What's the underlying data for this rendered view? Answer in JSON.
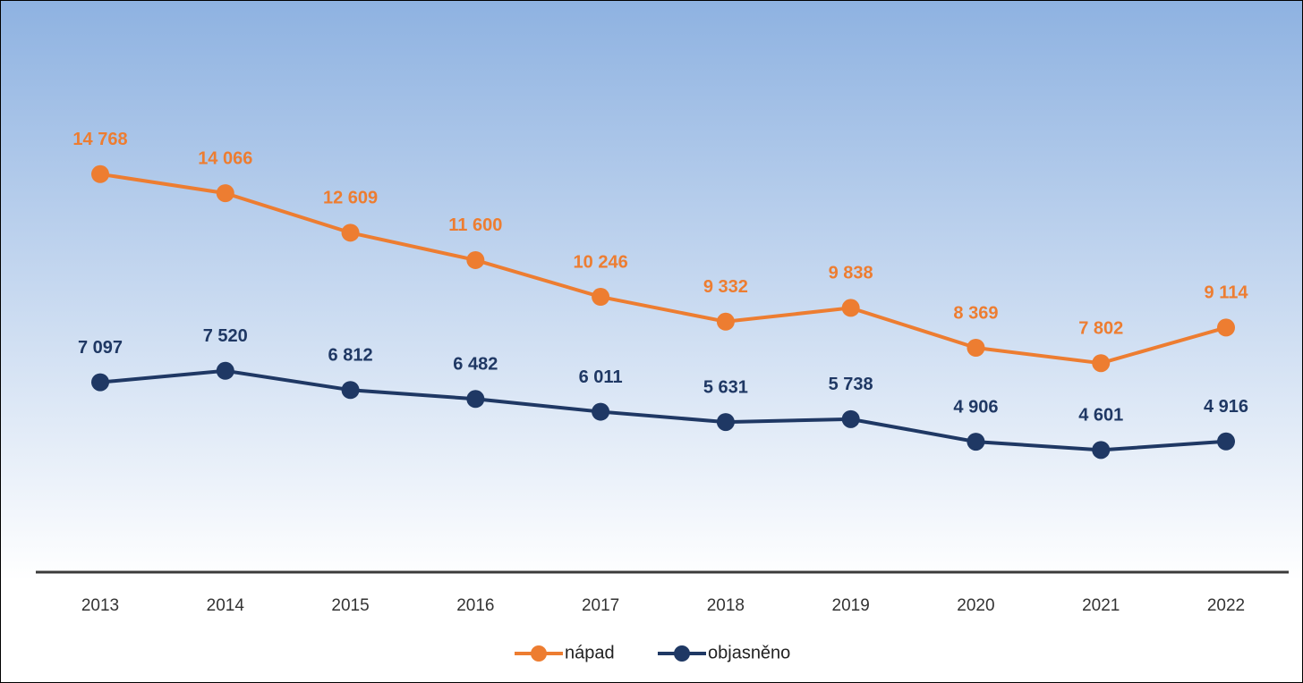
{
  "chart_data": {
    "type": "line",
    "categories": [
      "2013",
      "2014",
      "2015",
      "2016",
      "2017",
      "2018",
      "2019",
      "2020",
      "2021",
      "2022"
    ],
    "series": [
      {
        "name": "nápad",
        "color": "#ed7d31",
        "values": [
          14768,
          14066,
          12609,
          11600,
          10246,
          9332,
          9838,
          8369,
          7802,
          9114
        ],
        "value_labels": [
          "14 768",
          "14 066",
          "12 609",
          "11 600",
          "10 246",
          "9 332",
          "9 838",
          "8 369",
          "7 802",
          "9 114"
        ]
      },
      {
        "name": "objasněno",
        "color": "#1f3864",
        "values": [
          7097,
          7520,
          6812,
          6482,
          6011,
          5631,
          5738,
          4906,
          4601,
          4916
        ],
        "value_labels": [
          "7 097",
          "7 520",
          "6 812",
          "6 482",
          "6 011",
          "5 631",
          "5 738",
          "4 906",
          "4 601",
          "4 916"
        ]
      }
    ],
    "ylim": [
      0,
      20000
    ],
    "legend": "bottom"
  }
}
